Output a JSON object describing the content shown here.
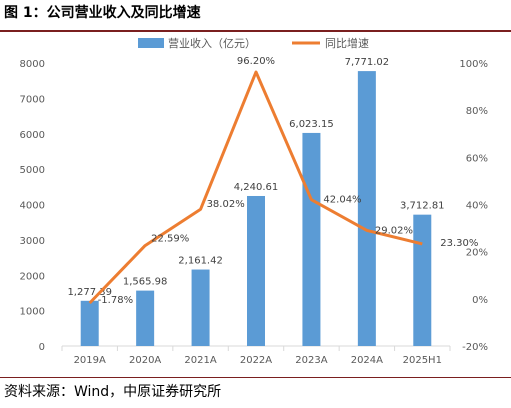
{
  "figure": {
    "title": "图 1：公司营业收入及同比增速",
    "source": "资料来源：Wind，中原证券研究所"
  },
  "chart_data": {
    "type": "bar",
    "categories": [
      "2019A",
      "2020A",
      "2021A",
      "2022A",
      "2023A",
      "2024A",
      "2025H1"
    ],
    "series": [
      {
        "name": "营业收入（亿元）",
        "type": "bar",
        "axis": "left",
        "color": "#5b9bd5",
        "values": [
          1277.39,
          1565.98,
          2161.42,
          4240.61,
          6023.15,
          7771.02,
          3712.81
        ],
        "labels": [
          "1,277.39",
          "1,565.98",
          "2,161.42",
          "4,240.61",
          "6,023.15",
          "7,771.02",
          "3,712.81"
        ]
      },
      {
        "name": "同比增速",
        "type": "line",
        "axis": "right",
        "color": "#ed7d31",
        "values": [
          -1.78,
          22.59,
          38.02,
          96.2,
          42.04,
          29.02,
          23.3
        ],
        "labels": [
          "-1.78%",
          "22.59%",
          "38.02%",
          "96.20%",
          "42.04%",
          "29.02%",
          "23.30%"
        ]
      }
    ],
    "ylim_left": [
      0,
      8000
    ],
    "yticks_left": [
      "0",
      "1000",
      "2000",
      "3000",
      "4000",
      "5000",
      "6000",
      "7000",
      "8000"
    ],
    "ylim_right": [
      -20,
      100
    ],
    "yticks_right": [
      "-20%",
      "0%",
      "20%",
      "40%",
      "60%",
      "80%",
      "100%"
    ],
    "grid": false,
    "legend": "top"
  }
}
